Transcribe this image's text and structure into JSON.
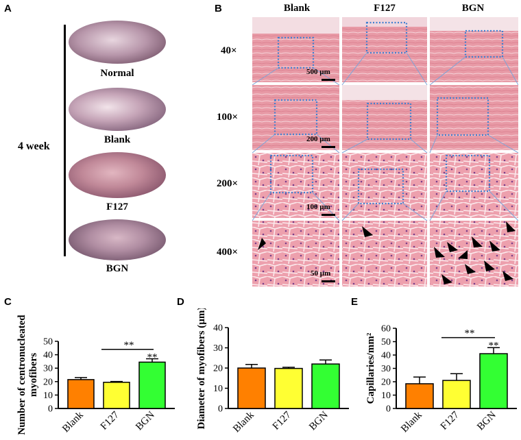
{
  "panelA": {
    "letter": "A",
    "time_label": "4 week",
    "samples": [
      "Normal",
      "Blank",
      "F127",
      "BGN"
    ]
  },
  "panelB": {
    "letter": "B",
    "columns": [
      "Blank",
      "F127",
      "BGN"
    ],
    "rows": [
      "40×",
      "100×",
      "200×",
      "400×"
    ],
    "scale_bars": [
      "500 µm",
      "200 µm",
      "100 µm",
      "50 µm"
    ]
  },
  "chart_data": [
    {
      "panel": "C",
      "type": "bar",
      "ylabel_line1": "Number of centronucleated",
      "ylabel_line2": "myofibers",
      "categories": [
        "Blank",
        "F127",
        "BGN"
      ],
      "values": [
        21.5,
        19.5,
        34.5
      ],
      "errors": [
        1.5,
        0.6,
        2.5
      ],
      "colors": [
        "#ff8000",
        "#ffff33",
        "#33ff33"
      ],
      "ylim": [
        0,
        50
      ],
      "yticks": [
        0,
        10,
        20,
        30,
        40,
        50
      ],
      "tick_labels": [
        "0",
        "10",
        "20",
        "30",
        "40",
        "50"
      ],
      "annotations": [
        {
          "text": "**",
          "from": 1,
          "to": 2,
          "y": 44
        },
        {
          "text": "**",
          "at": 2,
          "y": 37.5
        }
      ]
    },
    {
      "panel": "D",
      "type": "bar",
      "ylabel": "Diameter of myofibers (µm)",
      "categories": [
        "Blank",
        "F127",
        "BGN"
      ],
      "values": [
        20,
        19.8,
        22
      ],
      "errors": [
        1.8,
        0.6,
        2.0
      ],
      "colors": [
        "#ff8000",
        "#ffff33",
        "#33ff33"
      ],
      "ylim": [
        0,
        40
      ],
      "yticks": [
        0,
        10,
        20,
        30,
        40
      ],
      "tick_labels": [
        "0",
        "10",
        "20",
        "30",
        "40"
      ],
      "annotations": []
    },
    {
      "panel": "E",
      "type": "bar",
      "ylabel": "Capillaries/mm²",
      "categories": [
        "Blank",
        "F127",
        "BGN"
      ],
      "values": [
        18.5,
        21,
        41
      ],
      "errors": [
        5,
        5,
        4.5
      ],
      "colors": [
        "#ff8000",
        "#ffff33",
        "#33ff33"
      ],
      "ylim": [
        0,
        60
      ],
      "yticks": [
        0,
        10,
        20,
        30,
        40,
        50,
        60
      ],
      "tick_labels": [
        "0",
        "10",
        "20",
        "30",
        "40",
        "50",
        "60"
      ],
      "annotations": [
        {
          "text": "**",
          "from": 1,
          "to": 2,
          "y": 53
        },
        {
          "text": "**",
          "at": 2,
          "y": 46.5
        }
      ]
    }
  ]
}
